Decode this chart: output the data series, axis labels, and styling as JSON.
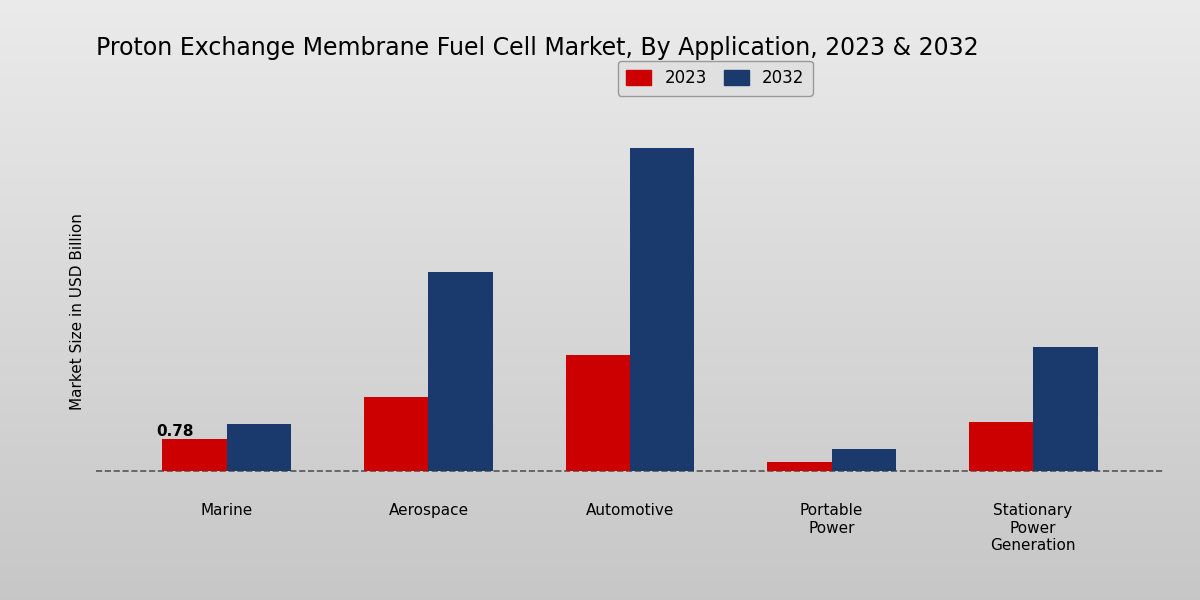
{
  "title": "Proton Exchange Membrane Fuel Cell Market, By Application, 2023 & 2032",
  "ylabel": "Market Size in USD Billion",
  "categories": [
    "Marine",
    "Aerospace",
    "Automotive",
    "Portable\nPower",
    "Stationary\nPower\nGeneration"
  ],
  "values_2023": [
    0.78,
    1.8,
    2.8,
    0.22,
    1.2
  ],
  "values_2032": [
    1.15,
    4.8,
    7.8,
    0.55,
    3.0
  ],
  "color_2023": "#cc0000",
  "color_2032": "#1a3a6e",
  "annotation_marine_2023": "0.78",
  "bg_color_top": "#d0d0d0",
  "bg_color_bottom": "#e8e8e8",
  "legend_2023": "2023",
  "legend_2032": "2032",
  "bar_width": 0.32,
  "title_fontsize": 17,
  "label_fontsize": 11,
  "tick_fontsize": 11,
  "legend_fontsize": 12,
  "watermark_text": ""
}
